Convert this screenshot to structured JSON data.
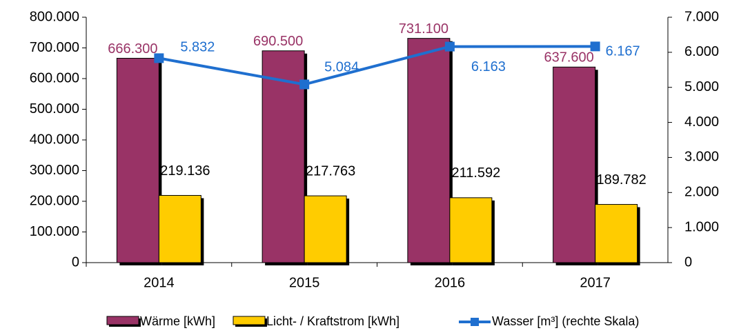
{
  "chart_data": {
    "type": "bar",
    "categories": [
      "2014",
      "2015",
      "2016",
      "2017"
    ],
    "series": [
      {
        "name": "Wärme [kWh]",
        "color": "#993366",
        "values": [
          666300,
          690500,
          731100,
          637600
        ],
        "value_labels": [
          "666.300",
          "690.500",
          "731.100",
          "637.600"
        ]
      },
      {
        "name": "Licht- / Kraftstrom [kWh]",
        "color": "#ffcc00",
        "values": [
          219136,
          217763,
          211592,
          189782
        ],
        "value_labels": [
          "219.136",
          "217.763",
          "211.592",
          "189.782"
        ]
      },
      {
        "name": "Wasser [m³] (rechte Skala)",
        "type": "line",
        "axis": "y2",
        "color": "#1f6fcf",
        "values": [
          5832,
          5084,
          6163,
          6167
        ],
        "value_labels": [
          "5.832",
          "5.084",
          "6.163",
          "6.167"
        ]
      }
    ],
    "ylim": [
      0,
      800000
    ],
    "yticks": [
      0,
      {
        "value": 100000,
        "label": "100.000"
      },
      {
        "value": 200000,
        "label": "200.000"
      },
      {
        "value": 300000,
        "label": "300.000"
      },
      {
        "value": 400000,
        "label": "400.000"
      },
      {
        "value": 500000,
        "label": "500.000"
      },
      {
        "value": 600000,
        "label": "600.000"
      },
      {
        "value": 700000,
        "label": "700.000"
      },
      {
        "value": 800000,
        "label": "800.000"
      }
    ],
    "y2lim": [
      0,
      7000
    ],
    "y2ticks": [
      0,
      {
        "value": 1000,
        "label": "1.000"
      },
      {
        "value": 2000,
        "label": "2.000"
      },
      {
        "value": 3000,
        "label": "3.000"
      },
      {
        "value": 4000,
        "label": "4.000"
      },
      {
        "value": 5000,
        "label": "5.000"
      },
      {
        "value": 6000,
        "label": "6.000"
      },
      {
        "value": 7000,
        "label": "7.000"
      }
    ],
    "legend": "bottom"
  }
}
